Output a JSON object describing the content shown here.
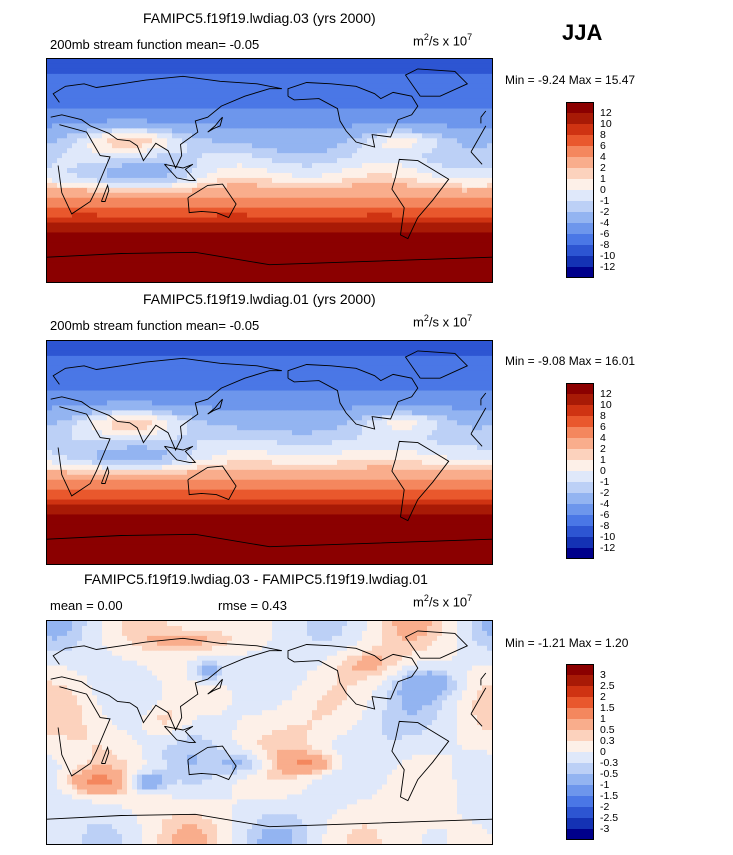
{
  "season": "JJA",
  "units_base": "m",
  "units_exp1": "2",
  "units_mid": "/s x 10",
  "units_exp2": "7",
  "colors": {
    "main": [
      "#00008b",
      "#1432b4",
      "#2d55d2",
      "#4a77e6",
      "#6d96ec",
      "#93b4f1",
      "#bcd0f6",
      "#dfe8fa",
      "#fdf0e8",
      "#fcd2bd",
      "#f9ad8c",
      "#f4875e",
      "#e9582d",
      "#cf3312",
      "#a81a06",
      "#8b0000"
    ],
    "diff": [
      "#00008b",
      "#1432b4",
      "#2d55d2",
      "#4a77e6",
      "#6d96ec",
      "#93b4f1",
      "#bcd0f6",
      "#dfe8fa",
      "#fdf0e8",
      "#fcd2bd",
      "#f9ad8c",
      "#f4875e",
      "#e9582d",
      "#cf3312",
      "#a81a06",
      "#8b0000"
    ]
  },
  "panels": [
    {
      "title": "FAMIPC5.f19f19.lwdiag.03 (yrs 2000)",
      "subtitle": "200mb stream function  mean=   -0.05",
      "minmax": "Min =  -9.24  Max =   15.47",
      "kind": "main"
    },
    {
      "title": "FAMIPC5.f19f19.lwdiag.01 (yrs 2000)",
      "subtitle": "200mb stream function  mean=   -0.05",
      "minmax": "Min =  -9.08  Max =   16.01",
      "kind": "main"
    },
    {
      "title": "FAMIPC5.f19f19.lwdiag.03 - FAMIPC5.f19f19.lwdiag.01",
      "subtitle_mean": "mean =     0.00",
      "subtitle_rmse": "rmse =     0.43",
      "minmax": "Min =  -1.21  Max =    1.20",
      "kind": "diff"
    }
  ],
  "chart_data": [
    {
      "type": "heatmap",
      "title": "FAMIPC5.f19f19.lwdiag.03 (yrs 2000)",
      "variable": "200mb stream function",
      "mean": -0.05,
      "min": -9.24,
      "max": 15.47,
      "colorbar_levels": [
        "12",
        "10",
        "8",
        "6",
        "4",
        "2",
        "1",
        "0",
        "-1",
        "-2",
        "-4",
        "-6",
        "-8",
        "-10",
        "-12"
      ]
    },
    {
      "type": "heatmap",
      "title": "FAMIPC5.f19f19.lwdiag.01 (yrs 2000)",
      "variable": "200mb stream function",
      "mean": -0.05,
      "min": -9.08,
      "max": 16.01,
      "colorbar_levels": [
        "12",
        "10",
        "8",
        "6",
        "4",
        "2",
        "1",
        "0",
        "-1",
        "-2",
        "-4",
        "-6",
        "-8",
        "-10",
        "-12"
      ]
    },
    {
      "type": "heatmap",
      "title": "FAMIPC5.f19f19.lwdiag.03 - FAMIPC5.f19f19.lwdiag.01",
      "mean": 0.0,
      "rmse": 0.43,
      "min": -1.21,
      "max": 1.2,
      "colorbar_levels": [
        "3",
        "2.5",
        "2",
        "1.5",
        "1",
        "0.5",
        "0.3",
        "0",
        "-0.3",
        "-0.5",
        "-1",
        "-1.5",
        "-2",
        "-2.5",
        "-3"
      ]
    }
  ]
}
